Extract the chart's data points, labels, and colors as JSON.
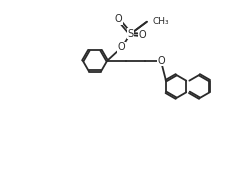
{
  "bg_color": "#ffffff",
  "line_color": "#2a2a2a",
  "line_width": 1.3,
  "figsize": [
    2.47,
    1.87
  ],
  "dpi": 100,
  "xlim": [
    0,
    10
  ],
  "ylim": [
    0,
    8
  ]
}
